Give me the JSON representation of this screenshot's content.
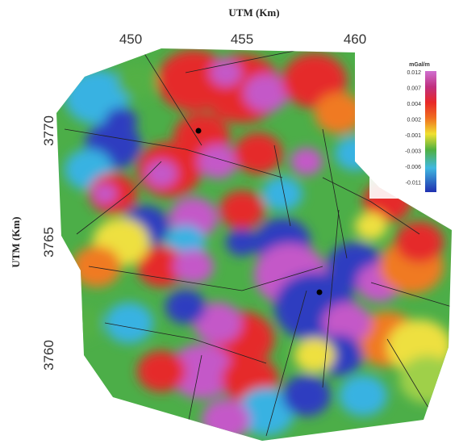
{
  "map": {
    "x_title": "UTM (Km)",
    "y_title": "UTM (Km)",
    "x_tick_labels": [
      "450",
      "455",
      "460"
    ],
    "y_tick_labels": [
      "3770",
      "3765",
      "3760"
    ],
    "legend": {
      "title": "mGal/m",
      "labels": [
        "0.012",
        "0.007",
        "0.004",
        "0.002",
        "-0.001",
        "-0.003",
        "-0.006",
        "-0.011"
      ]
    }
  }
}
